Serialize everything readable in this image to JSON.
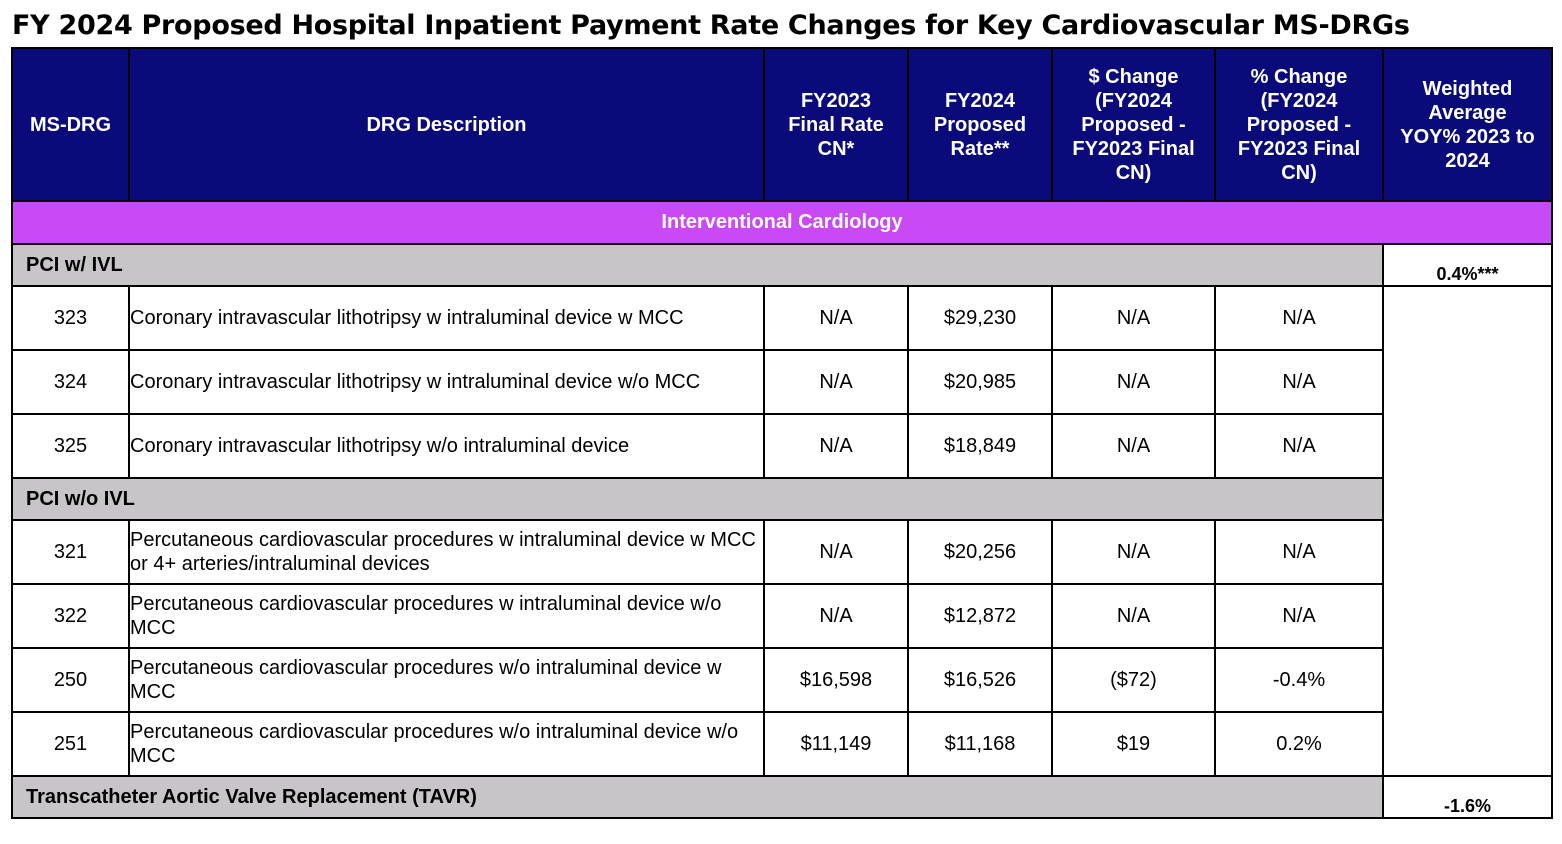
{
  "title": "FY 2024 Proposed Hospital Inpatient Payment Rate Changes for Key Cardiovascular MS-DRGs",
  "headers": {
    "msdrg": "MS-DRG",
    "desc": "DRG Description",
    "fy2023": "FY2023 Final Rate CN*",
    "fy2024": "FY2024 Proposed Rate**",
    "dollar_change": "$ Change (FY2024 Proposed - FY2023 Final CN)",
    "pct_change": "% Change (FY2024 Proposed - FY2023 Final CN)",
    "weighted": "Weighted Average YOY% 2023 to 2024"
  },
  "category": "Interventional Cardiology",
  "groups": [
    {
      "label": "PCI w/ IVL",
      "weighted": "0.4%***",
      "rows": [
        {
          "code": "323",
          "desc": "Coronary intravascular lithotripsy w intraluminal device w MCC",
          "fy2023": "N/A",
          "fy2024": "$29,230",
          "dollar": "N/A",
          "pct": "N/A"
        },
        {
          "code": "324",
          "desc": "Coronary intravascular lithotripsy w intraluminal device w/o MCC",
          "fy2023": "N/A",
          "fy2024": "$20,985",
          "dollar": "N/A",
          "pct": "N/A"
        },
        {
          "code": "325",
          "desc": "Coronary intravascular lithotripsy w/o intraluminal device",
          "fy2023": "N/A",
          "fy2024": "$18,849",
          "dollar": "N/A",
          "pct": "N/A"
        }
      ]
    },
    {
      "label": "PCI w/o IVL",
      "rows": [
        {
          "code": "321",
          "desc": "Percutaneous cardiovascular procedures w intraluminal device w MCC or 4+ arteries/intraluminal devices",
          "fy2023": "N/A",
          "fy2024": "$20,256",
          "dollar": "N/A",
          "pct": "N/A"
        },
        {
          "code": "322",
          "desc": "Percutaneous cardiovascular procedures w intraluminal device w/o MCC",
          "fy2023": "N/A",
          "fy2024": "$12,872",
          "dollar": "N/A",
          "pct": "N/A"
        },
        {
          "code": "250",
          "desc": "Percutaneous cardiovascular procedures w/o intraluminal device w MCC",
          "fy2023": "$16,598",
          "fy2024": "$16,526",
          "dollar": "($72)",
          "pct": "-0.4%"
        },
        {
          "code": "251",
          "desc": "Percutaneous cardiovascular procedures w/o intraluminal device w/o MCC",
          "fy2023": "$11,149",
          "fy2024": "$11,168",
          "dollar": "$19",
          "pct": "0.2%"
        }
      ]
    },
    {
      "label": "Transcatheter Aortic Valve Replacement (TAVR)",
      "weighted": "-1.6%"
    }
  ]
}
